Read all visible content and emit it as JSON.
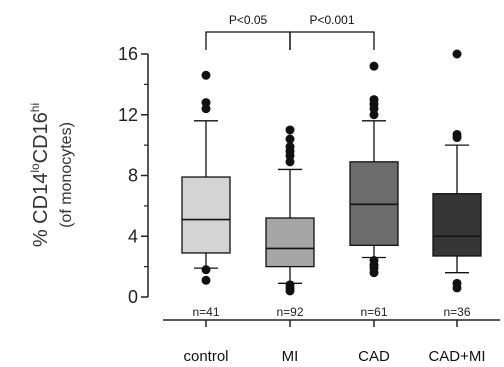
{
  "chart_data": {
    "type": "box",
    "ylabel": {
      "prefix": "% CD14",
      "sup1": "lo",
      "mid": "CD16",
      "sup2": "hi",
      "line2": "(of monocytes)"
    },
    "ylim": [
      0,
      17
    ],
    "yticks": [
      0,
      4,
      8,
      12,
      16
    ],
    "yminor": [
      2,
      6,
      10,
      14
    ],
    "grid": false,
    "categories": [
      "control",
      "MI",
      "CAD",
      "CAD+MI"
    ],
    "colors": [
      "#d4d4d4",
      "#a6a6a6",
      "#6c6c6c",
      "#363636"
    ],
    "n_labels": [
      "n=41",
      "n=92",
      "n=61",
      "n=36"
    ],
    "boxes": [
      {
        "category": "control",
        "q1": 2.9,
        "median": 5.1,
        "q3": 7.9,
        "whisker_low": 1.9,
        "whisker_high": 11.6,
        "outliers": [
          14.6,
          12.8,
          12.4,
          1.8,
          1.1
        ]
      },
      {
        "category": "MI",
        "q1": 2.0,
        "median": 3.2,
        "q3": 5.2,
        "whisker_low": 0.9,
        "whisker_high": 8.4,
        "outliers": [
          11.0,
          10.4,
          9.9,
          9.6,
          9.3,
          8.9,
          0.8,
          0.6,
          0.4
        ]
      },
      {
        "category": "CAD",
        "q1": 3.4,
        "median": 6.1,
        "q3": 8.9,
        "whisker_low": 2.6,
        "whisker_high": 11.6,
        "outliers": [
          15.2,
          13.0,
          12.7,
          12.4,
          12.0,
          2.4,
          2.1,
          1.9,
          1.6
        ]
      },
      {
        "category": "CAD+MI",
        "q1": 2.7,
        "median": 4.0,
        "q3": 6.8,
        "whisker_low": 1.6,
        "whisker_high": 10.0,
        "outliers": [
          16.0,
          10.7,
          10.5,
          0.9,
          0.6
        ]
      }
    ],
    "comparisons": [
      {
        "from": "control",
        "to": "MI",
        "label": "P<0.05"
      },
      {
        "from": "MI",
        "to": "CAD",
        "label": "P<0.001"
      }
    ]
  }
}
